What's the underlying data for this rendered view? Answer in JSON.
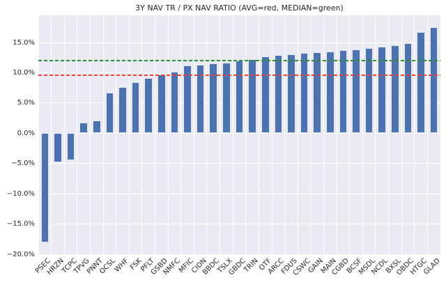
{
  "chart_data": {
    "type": "bar",
    "title": "3Y NAV TR / PX NAV RATIO (AVG=red, MEDIAN=green)",
    "xlabel": "",
    "ylabel": "",
    "categories": [
      "PSEC",
      "HRZN",
      "TCPC",
      "TPVG",
      "PNNT",
      "OCSL",
      "WHF",
      "FSK",
      "PFLT",
      "GSBD",
      "NMFC",
      "MFIC",
      "CION",
      "BBDC",
      "TSLX",
      "GBDC",
      "TRIN",
      "OTF",
      "ARCC",
      "FDUS",
      "CSWC",
      "GAIN",
      "MAIN",
      "CGBD",
      "BCSF",
      "MSDL",
      "NCDL",
      "BXSL",
      "OBDC",
      "HTGC",
      "GLAD"
    ],
    "values": [
      -18.0,
      -4.8,
      -4.4,
      1.8,
      2.1,
      6.7,
      7.6,
      8.5,
      9.1,
      9.7,
      10.2,
      11.2,
      11.3,
      11.6,
      11.7,
      12.0,
      12.2,
      12.7,
      12.9,
      13.0,
      13.3,
      13.4,
      13.5,
      13.8,
      13.9,
      14.1,
      14.3,
      14.5,
      14.9,
      16.7,
      17.6
    ],
    "value_unit": "%",
    "avg_line": {
      "label": "AVG",
      "value": 9.6,
      "color": "#ef4040",
      "style": "dashed"
    },
    "median_line": {
      "label": "MEDIAN",
      "value": 12.0,
      "color": "#2e8b2e",
      "style": "dashed"
    },
    "bar_color": "#4c72b0",
    "plot_bg": "#eaeaf2",
    "grid": true,
    "grid_color": "#ffffff",
    "legend_position": "none",
    "ylim": [
      -20.0,
      19.5
    ],
    "yticks": [
      15,
      10,
      5,
      0,
      -5,
      -10,
      -15,
      -20
    ],
    "ytick_labels": [
      "15.0%",
      "10.0%",
      "5.0%",
      "0.0%",
      "−5.0%",
      "−10.0%",
      "−15.0%",
      "−20.0%"
    ]
  }
}
